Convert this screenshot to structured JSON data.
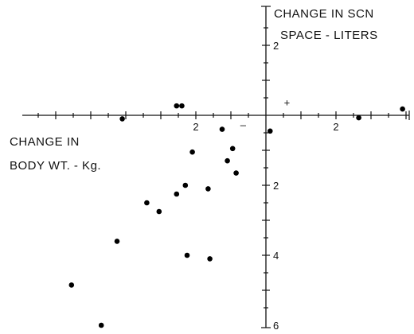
{
  "chart_data": {
    "type": "scatter",
    "xlabel_lines": [
      "CHANGE IN",
      "BODY WT. - Kg."
    ],
    "ylabel_lines": [
      "CHANGE IN SCN",
      "SPACE - LITERS"
    ],
    "xlim": [
      -7.5,
      4.0
    ],
    "ylim": [
      -6.0,
      2.5
    ],
    "x_tick_labels": [
      {
        "value": -2,
        "label": "2"
      },
      {
        "value": 2,
        "label": "2"
      }
    ],
    "y_tick_labels": [
      {
        "value": 2,
        "label": "2"
      },
      {
        "value": -2,
        "label": "2"
      },
      {
        "value": -4,
        "label": "4"
      },
      {
        "value": -6,
        "label": "6"
      }
    ],
    "sign_marks": [
      {
        "text": "+",
        "x": 0.6,
        "y": 0.35
      },
      {
        "text": "–",
        "x": -0.65,
        "y": -0.28
      }
    ],
    "points": [
      {
        "x": -4.1,
        "y": -0.1
      },
      {
        "x": -2.4,
        "y": 0.27
      },
      {
        "x": 3.9,
        "y": 0.18
      },
      {
        "x": 2.65,
        "y": -0.07
      },
      {
        "x": 0.12,
        "y": -0.45
      },
      {
        "x": -2.55,
        "y": 0.27
      },
      {
        "x": -2.1,
        "y": -1.05
      },
      {
        "x": -1.25,
        "y": -0.4
      },
      {
        "x": -0.95,
        "y": -0.95
      },
      {
        "x": -1.1,
        "y": -1.3
      },
      {
        "x": -0.85,
        "y": -1.65
      },
      {
        "x": -2.3,
        "y": -2.0
      },
      {
        "x": -1.65,
        "y": -2.1
      },
      {
        "x": -2.55,
        "y": -2.25
      },
      {
        "x": -3.4,
        "y": -2.5
      },
      {
        "x": -3.05,
        "y": -2.75
      },
      {
        "x": -4.25,
        "y": -3.6
      },
      {
        "x": -2.25,
        "y": -4.0
      },
      {
        "x": -1.6,
        "y": -4.1
      },
      {
        "x": -5.55,
        "y": -4.85
      },
      {
        "x": -4.7,
        "y": -6.0
      }
    ]
  }
}
